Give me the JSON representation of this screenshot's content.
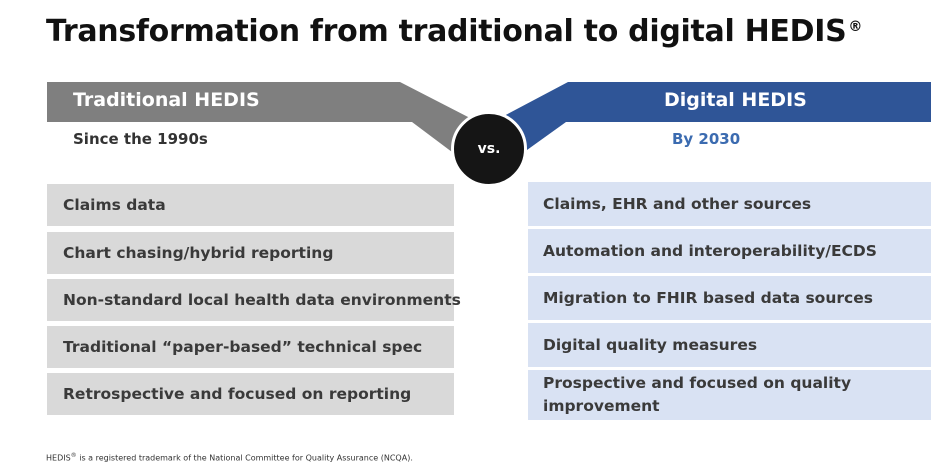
{
  "title": {
    "main": "Transformation from traditional to digital HEDIS",
    "superscript": "®"
  },
  "traditional": {
    "heading": "Traditional HEDIS",
    "since": "Since the 1990s",
    "color": "#7f7f7f",
    "items": [
      "Claims data",
      "Chart chasing/hybrid reporting",
      "Non-standard local health data environments",
      "Traditional “paper-based” technical spec",
      "Retrospective and focused on reporting"
    ]
  },
  "versus": {
    "label": "vs."
  },
  "digital": {
    "heading": "Digital HEDIS",
    "by": "By 2030",
    "color": "#2f5597",
    "items": [
      "Claims, EHR and other sources",
      "Automation and interoperability/ECDS",
      "Migration to FHIR based data sources",
      "Digital quality measures",
      "Prospective and focused on quality improvement"
    ]
  },
  "footnote": {
    "prefix": "HEDIS",
    "superscript": "®",
    "text": " is a registered trademark of the National Committee for Quality Assurance (NCQA)."
  }
}
